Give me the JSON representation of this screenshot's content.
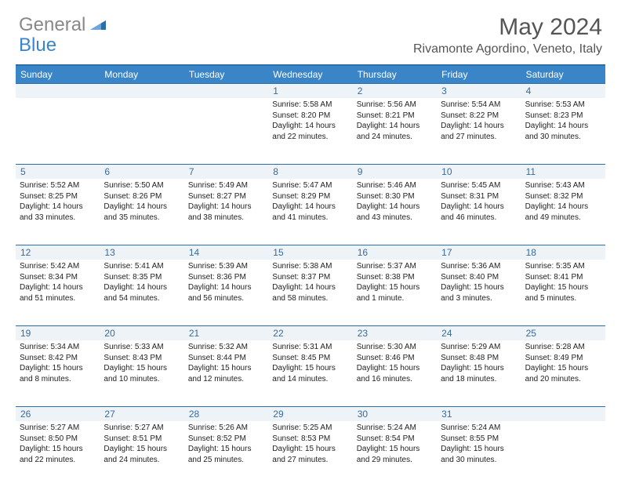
{
  "logo": {
    "general": "General",
    "blue": "Blue"
  },
  "title": "May 2024",
  "location": "Rivamonte Agordino, Veneto, Italy",
  "colors": {
    "header_bg": "#3a85c7",
    "header_border": "#2e6ea8",
    "date_bg": "#eef3f7",
    "date_color": "#3a6b99",
    "logo_gray": "#888888",
    "logo_blue": "#3a85c7",
    "title_color": "#555555",
    "text": "#222222"
  },
  "day_names": [
    "Sunday",
    "Monday",
    "Tuesday",
    "Wednesday",
    "Thursday",
    "Friday",
    "Saturday"
  ],
  "weeks": [
    {
      "dates": [
        "",
        "",
        "",
        "1",
        "2",
        "3",
        "4"
      ],
      "cells": [
        {
          "sr": "",
          "ss": "",
          "dl": ""
        },
        {
          "sr": "",
          "ss": "",
          "dl": ""
        },
        {
          "sr": "",
          "ss": "",
          "dl": ""
        },
        {
          "sr": "Sunrise: 5:58 AM",
          "ss": "Sunset: 8:20 PM",
          "dl": "Daylight: 14 hours and 22 minutes."
        },
        {
          "sr": "Sunrise: 5:56 AM",
          "ss": "Sunset: 8:21 PM",
          "dl": "Daylight: 14 hours and 24 minutes."
        },
        {
          "sr": "Sunrise: 5:54 AM",
          "ss": "Sunset: 8:22 PM",
          "dl": "Daylight: 14 hours and 27 minutes."
        },
        {
          "sr": "Sunrise: 5:53 AM",
          "ss": "Sunset: 8:23 PM",
          "dl": "Daylight: 14 hours and 30 minutes."
        }
      ]
    },
    {
      "dates": [
        "5",
        "6",
        "7",
        "8",
        "9",
        "10",
        "11"
      ],
      "cells": [
        {
          "sr": "Sunrise: 5:52 AM",
          "ss": "Sunset: 8:25 PM",
          "dl": "Daylight: 14 hours and 33 minutes."
        },
        {
          "sr": "Sunrise: 5:50 AM",
          "ss": "Sunset: 8:26 PM",
          "dl": "Daylight: 14 hours and 35 minutes."
        },
        {
          "sr": "Sunrise: 5:49 AM",
          "ss": "Sunset: 8:27 PM",
          "dl": "Daylight: 14 hours and 38 minutes."
        },
        {
          "sr": "Sunrise: 5:47 AM",
          "ss": "Sunset: 8:29 PM",
          "dl": "Daylight: 14 hours and 41 minutes."
        },
        {
          "sr": "Sunrise: 5:46 AM",
          "ss": "Sunset: 8:30 PM",
          "dl": "Daylight: 14 hours and 43 minutes."
        },
        {
          "sr": "Sunrise: 5:45 AM",
          "ss": "Sunset: 8:31 PM",
          "dl": "Daylight: 14 hours and 46 minutes."
        },
        {
          "sr": "Sunrise: 5:43 AM",
          "ss": "Sunset: 8:32 PM",
          "dl": "Daylight: 14 hours and 49 minutes."
        }
      ]
    },
    {
      "dates": [
        "12",
        "13",
        "14",
        "15",
        "16",
        "17",
        "18"
      ],
      "cells": [
        {
          "sr": "Sunrise: 5:42 AM",
          "ss": "Sunset: 8:34 PM",
          "dl": "Daylight: 14 hours and 51 minutes."
        },
        {
          "sr": "Sunrise: 5:41 AM",
          "ss": "Sunset: 8:35 PM",
          "dl": "Daylight: 14 hours and 54 minutes."
        },
        {
          "sr": "Sunrise: 5:39 AM",
          "ss": "Sunset: 8:36 PM",
          "dl": "Daylight: 14 hours and 56 minutes."
        },
        {
          "sr": "Sunrise: 5:38 AM",
          "ss": "Sunset: 8:37 PM",
          "dl": "Daylight: 14 hours and 58 minutes."
        },
        {
          "sr": "Sunrise: 5:37 AM",
          "ss": "Sunset: 8:38 PM",
          "dl": "Daylight: 15 hours and 1 minute."
        },
        {
          "sr": "Sunrise: 5:36 AM",
          "ss": "Sunset: 8:40 PM",
          "dl": "Daylight: 15 hours and 3 minutes."
        },
        {
          "sr": "Sunrise: 5:35 AM",
          "ss": "Sunset: 8:41 PM",
          "dl": "Daylight: 15 hours and 5 minutes."
        }
      ]
    },
    {
      "dates": [
        "19",
        "20",
        "21",
        "22",
        "23",
        "24",
        "25"
      ],
      "cells": [
        {
          "sr": "Sunrise: 5:34 AM",
          "ss": "Sunset: 8:42 PM",
          "dl": "Daylight: 15 hours and 8 minutes."
        },
        {
          "sr": "Sunrise: 5:33 AM",
          "ss": "Sunset: 8:43 PM",
          "dl": "Daylight: 15 hours and 10 minutes."
        },
        {
          "sr": "Sunrise: 5:32 AM",
          "ss": "Sunset: 8:44 PM",
          "dl": "Daylight: 15 hours and 12 minutes."
        },
        {
          "sr": "Sunrise: 5:31 AM",
          "ss": "Sunset: 8:45 PM",
          "dl": "Daylight: 15 hours and 14 minutes."
        },
        {
          "sr": "Sunrise: 5:30 AM",
          "ss": "Sunset: 8:46 PM",
          "dl": "Daylight: 15 hours and 16 minutes."
        },
        {
          "sr": "Sunrise: 5:29 AM",
          "ss": "Sunset: 8:48 PM",
          "dl": "Daylight: 15 hours and 18 minutes."
        },
        {
          "sr": "Sunrise: 5:28 AM",
          "ss": "Sunset: 8:49 PM",
          "dl": "Daylight: 15 hours and 20 minutes."
        }
      ]
    },
    {
      "dates": [
        "26",
        "27",
        "28",
        "29",
        "30",
        "31",
        ""
      ],
      "cells": [
        {
          "sr": "Sunrise: 5:27 AM",
          "ss": "Sunset: 8:50 PM",
          "dl": "Daylight: 15 hours and 22 minutes."
        },
        {
          "sr": "Sunrise: 5:27 AM",
          "ss": "Sunset: 8:51 PM",
          "dl": "Daylight: 15 hours and 24 minutes."
        },
        {
          "sr": "Sunrise: 5:26 AM",
          "ss": "Sunset: 8:52 PM",
          "dl": "Daylight: 15 hours and 25 minutes."
        },
        {
          "sr": "Sunrise: 5:25 AM",
          "ss": "Sunset: 8:53 PM",
          "dl": "Daylight: 15 hours and 27 minutes."
        },
        {
          "sr": "Sunrise: 5:24 AM",
          "ss": "Sunset: 8:54 PM",
          "dl": "Daylight: 15 hours and 29 minutes."
        },
        {
          "sr": "Sunrise: 5:24 AM",
          "ss": "Sunset: 8:55 PM",
          "dl": "Daylight: 15 hours and 30 minutes."
        },
        {
          "sr": "",
          "ss": "",
          "dl": ""
        }
      ]
    }
  ]
}
